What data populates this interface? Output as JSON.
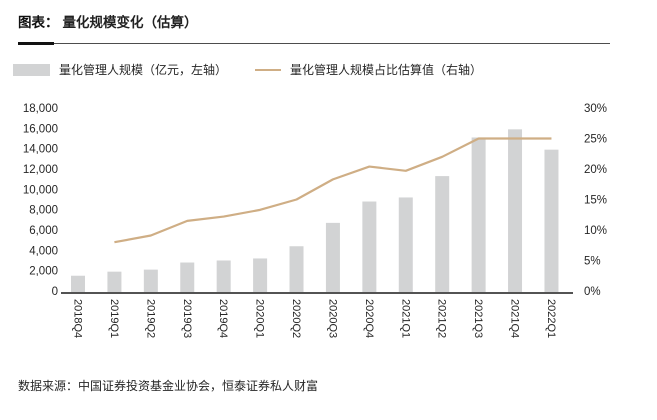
{
  "header": {
    "prefix": "图表：",
    "title": "量化规模变化（估算）"
  },
  "legend": {
    "bar_label": "量化管理人规模（亿元，左轴）",
    "line_label": "量化管理人规模占比估算值（右轴）"
  },
  "footer": {
    "source": "数据来源：中国证券投资基金业协会，恒泰证券私人财富"
  },
  "colors": {
    "bar": "#d2d3d4",
    "line": "#cfae85",
    "axis_text": "#262626",
    "baseline": "#1a1a1a"
  },
  "chart_data": {
    "type": "combo-bar-line",
    "title": "量化规模变化（估算）",
    "categories": [
      "2018Q4",
      "2019Q1",
      "2019Q2",
      "2019Q3",
      "2019Q4",
      "2020Q1",
      "2020Q2",
      "2020Q3",
      "2020Q4",
      "2021Q1",
      "2021Q2",
      "2021Q3",
      "2021Q4",
      "2022Q1"
    ],
    "series": [
      {
        "name": "量化管理人规模（亿元，左轴）",
        "type": "bar",
        "axis": "left",
        "color": "#d2d3d4",
        "values": [
          1600,
          2000,
          2200,
          2900,
          3100,
          3300,
          4500,
          6800,
          8900,
          9300,
          11400,
          15200,
          16000,
          14000
        ]
      },
      {
        "name": "量化管理人规模占比估算值（右轴）",
        "type": "line",
        "axis": "right",
        "color": "#cfae85",
        "values": [
          null,
          8,
          9.1,
          11.5,
          12.2,
          13.3,
          15,
          18.3,
          20.4,
          19.7,
          22,
          25,
          25,
          25
        ]
      }
    ],
    "left_axis": {
      "min": 0,
      "max": 18000,
      "step": 2000,
      "tick_labels": [
        "0",
        "2,000",
        "4,000",
        "6,000",
        "8,000",
        "10,000",
        "12,000",
        "14,000",
        "16,000",
        "18,000"
      ]
    },
    "right_axis": {
      "min": 0,
      "max": 30,
      "step": 5,
      "tick_labels": [
        "0%",
        "5%",
        "10%",
        "15%",
        "20%",
        "25%",
        "30%"
      ]
    },
    "grid": false,
    "legend_position": "top"
  }
}
